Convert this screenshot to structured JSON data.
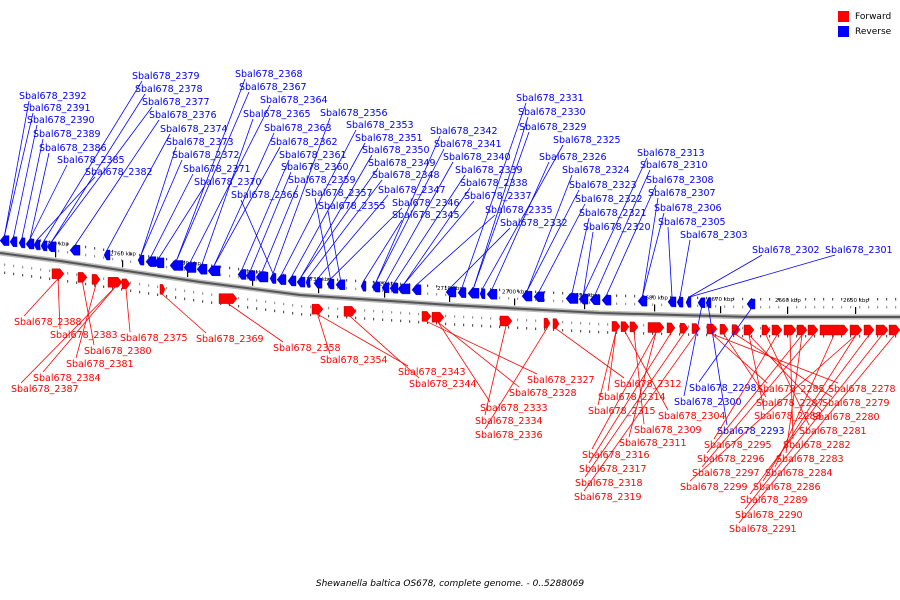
{
  "legend": {
    "forward": {
      "label": "Forward",
      "color": "#ff0000"
    },
    "reverse": {
      "label": "Reverse",
      "color": "#0000ff"
    }
  },
  "footer": "Shewanella baltica OS678, complete genome. - 0..5288069",
  "ticks": [
    "2770 kbp",
    "2760 kbp",
    "2750 kbp",
    "2740 kbp",
    "2730 kbp",
    "2720 kbp",
    "2710 kbp",
    "2700 kbp",
    "2690 kbp",
    "2680 kbp",
    "2670 kbp",
    "2660 kbp",
    "2650 kbp"
  ],
  "reverse_labels": [
    "Sbal678_2392",
    "Sbal678_2391",
    "Sbal678_2390",
    "Sbal678_2389",
    "Sbal678_2386",
    "Sbal678_2385",
    "Sbal678_2382",
    "Sbal678_2379",
    "Sbal678_2378",
    "Sbal678_2377",
    "Sbal678_2376",
    "Sbal678_2374",
    "Sbal678_2373",
    "Sbal678_2372",
    "Sbal678_2371",
    "Sbal678_2370",
    "Sbal678_2368",
    "Sbal678_2367",
    "Sbal678_2364",
    "Sbal678_2365",
    "Sbal678_2363",
    "Sbal678_2362",
    "Sbal678_2361",
    "Sbal678_2360",
    "Sbal678_2359",
    "Sbal678_2366",
    "Sbal678_2356",
    "Sbal678_2353",
    "Sbal678_2351",
    "Sbal678_2350",
    "Sbal678_2349",
    "Sbal678_2348",
    "Sbal678_2347",
    "Sbal678_2357",
    "Sbal678_2346",
    "Sbal678_2355",
    "Sbal678_2345",
    "Sbal678_2342",
    "Sbal678_2341",
    "Sbal678_2340",
    "Sbal678_2339",
    "Sbal678_2338",
    "Sbal678_2337",
    "Sbal678_2335",
    "Sbal678_2332",
    "Sbal678_2331",
    "Sbal678_2330",
    "Sbal678_2329",
    "Sbal678_2325",
    "Sbal678_2326",
    "Sbal678_2324",
    "Sbal678_2323",
    "Sbal678_2322",
    "Sbal678_2321",
    "Sbal678_2320",
    "Sbal678_2313",
    "Sbal678_2310",
    "Sbal678_2308",
    "Sbal678_2307",
    "Sbal678_2306",
    "Sbal678_2305",
    "Sbal678_2303",
    "Sbal678_2302",
    "Sbal678_2301",
    "Sbal678_2300",
    "Sbal678_2293",
    "Sbal678_2298"
  ],
  "forward_labels": [
    "Sbal678_2388",
    "Sbal678_2383",
    "Sbal678_2380",
    "Sbal678_2381",
    "Sbal678_2384",
    "Sbal678_2387",
    "Sbal678_2375",
    "Sbal678_2369",
    "Sbal678_2358",
    "Sbal678_2354",
    "Sbal678_2343",
    "Sbal678_2344",
    "Sbal678_2327",
    "Sbal678_2328",
    "Sbal678_2333",
    "Sbal678_2334",
    "Sbal678_2336",
    "Sbal678_2312",
    "Sbal678_2314",
    "Sbal678_2315",
    "Sbal678_2304",
    "Sbal678_2309",
    "Sbal678_2311",
    "Sbal678_2316",
    "Sbal678_2317",
    "Sbal678_2318",
    "Sbal678_2319",
    "Sbal678_2285",
    "Sbal678_2278",
    "Sbal678_2287",
    "Sbal678_2279",
    "Sbal678_2288",
    "Sbal678_2280",
    "Sbal678_2281",
    "Sbal678_2295",
    "Sbal678_2282",
    "Sbal678_2296",
    "Sbal678_2283",
    "Sbal678_2297",
    "Sbal678_2284",
    "Sbal678_2299",
    "Sbal678_2286",
    "Sbal678_2289",
    "Sbal678_2290",
    "Sbal678_2291"
  ]
}
